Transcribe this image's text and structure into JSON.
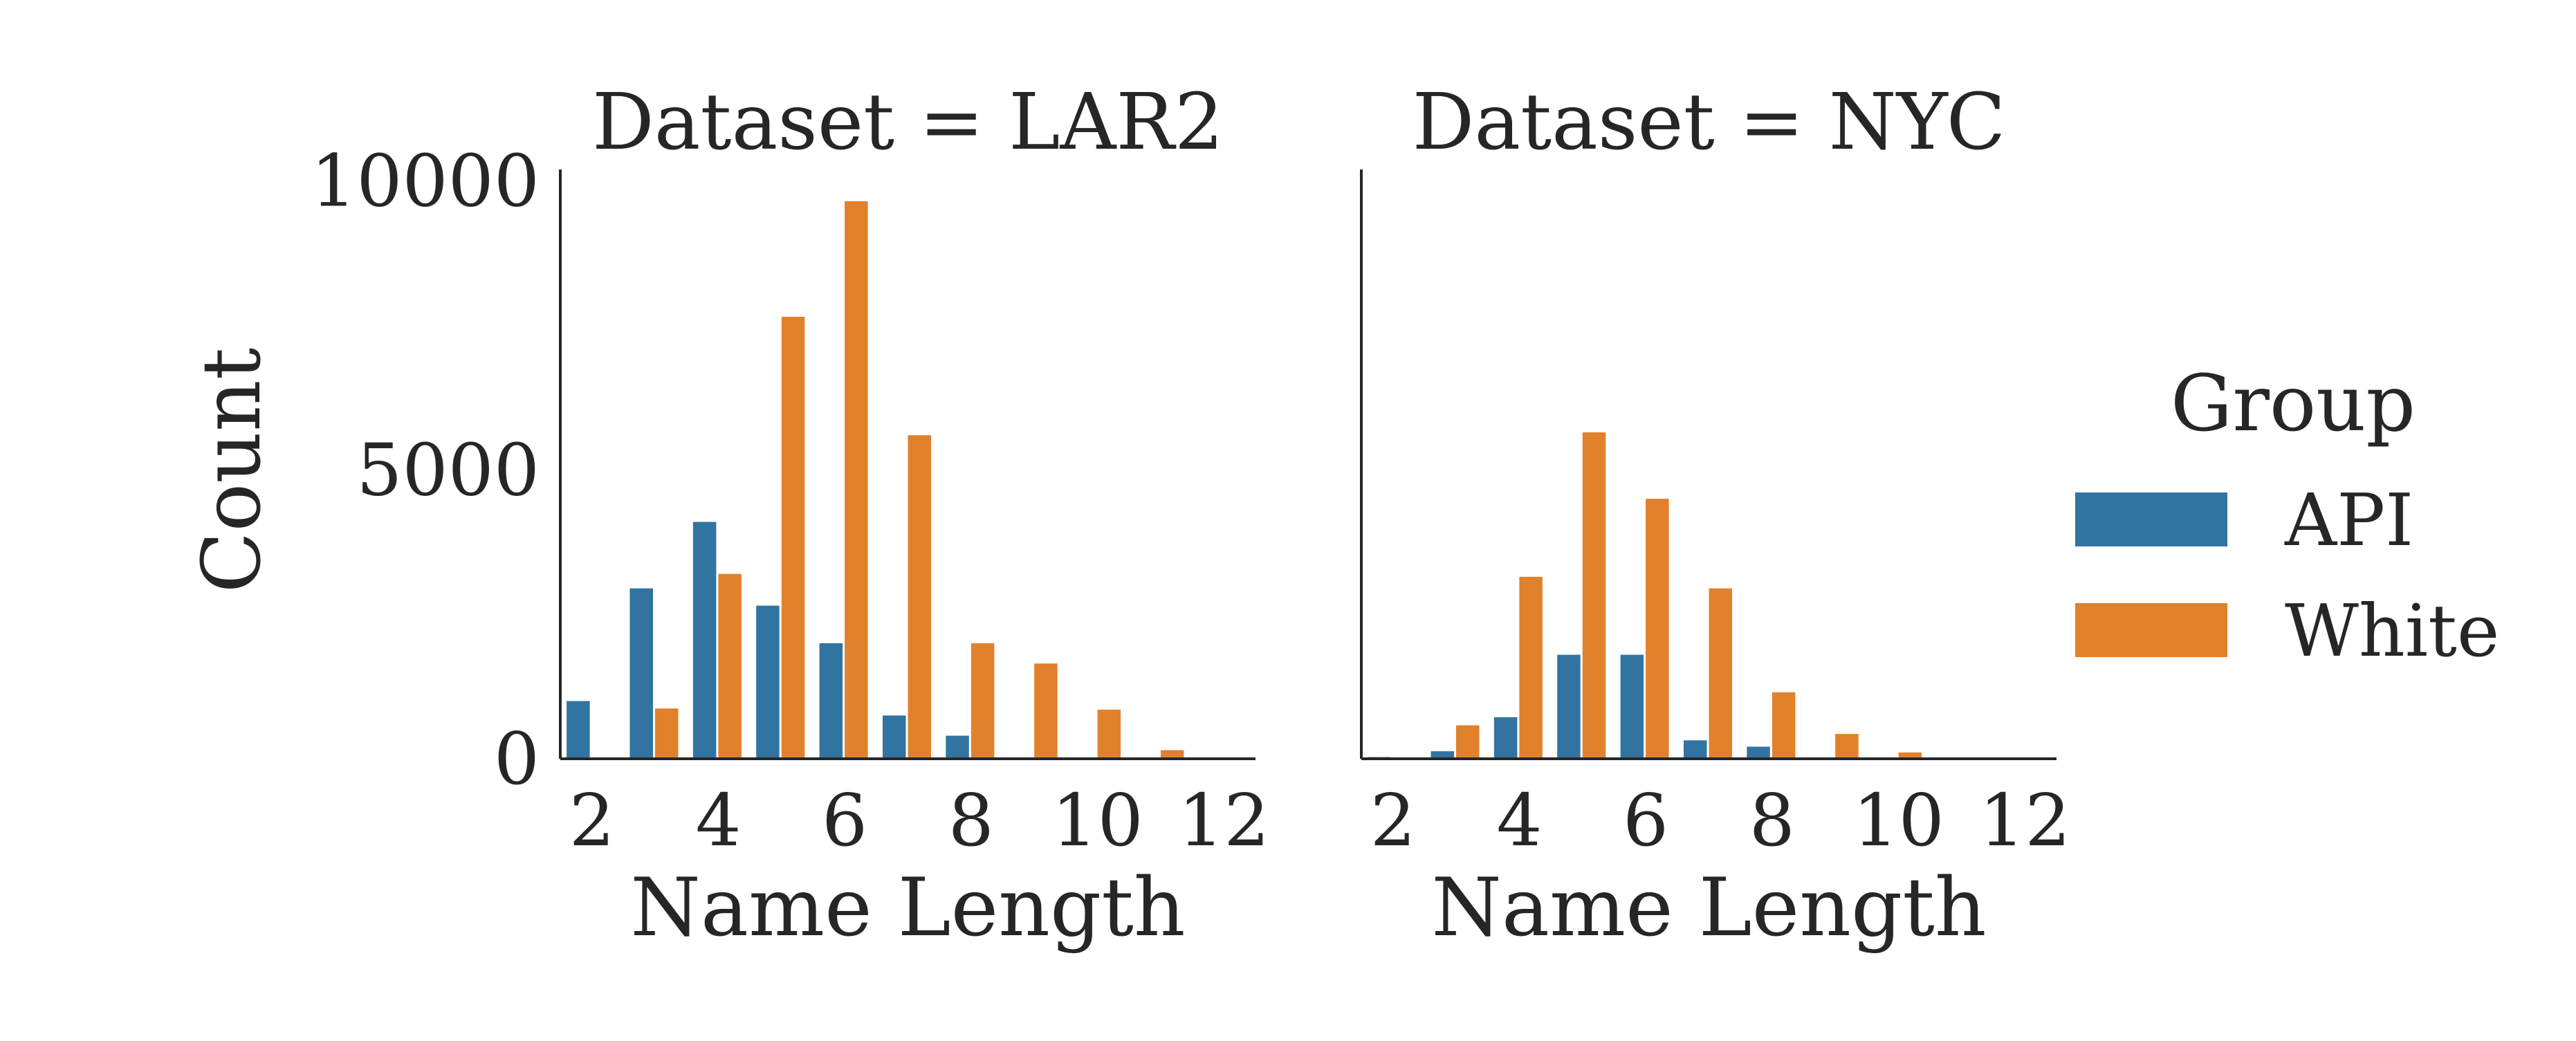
{
  "chart_data": [
    {
      "type": "bar",
      "title": "Dataset = LAR2",
      "xlabel": "Name Length",
      "ylabel": "Count",
      "x": [
        2,
        3,
        4,
        5,
        6,
        7,
        8,
        9,
        10,
        11
      ],
      "xlim": [
        1.5,
        12.5
      ],
      "ylim": [
        0,
        10200
      ],
      "xticks": [
        "2",
        "4",
        "6",
        "8",
        "10",
        "12"
      ],
      "yticks": [
        "0",
        "5000",
        "10000"
      ],
      "series": [
        {
          "name": "API",
          "values": [
            1000,
            2950,
            4100,
            2650,
            2000,
            750,
            400,
            20,
            0,
            0
          ]
        },
        {
          "name": "White",
          "values": [
            0,
            870,
            3200,
            7650,
            9650,
            5600,
            2000,
            1650,
            850,
            150
          ]
        }
      ]
    },
    {
      "type": "bar",
      "title": "Dataset = NYC",
      "xlabel": "Name Length",
      "ylabel": "",
      "x": [
        2,
        3,
        4,
        5,
        6,
        7,
        8,
        9,
        10,
        11
      ],
      "xlim": [
        1.5,
        12.5
      ],
      "ylim": [
        0,
        10200
      ],
      "xticks": [
        "2",
        "4",
        "6",
        "8",
        "10",
        "12"
      ],
      "yticks": [],
      "series": [
        {
          "name": "API",
          "values": [
            30,
            130,
            720,
            1800,
            1800,
            320,
            210,
            0,
            0,
            0
          ]
        },
        {
          "name": "White",
          "values": [
            0,
            580,
            3150,
            5650,
            4500,
            2950,
            1150,
            430,
            110,
            0
          ]
        }
      ]
    }
  ],
  "legend": {
    "title": "Group",
    "placement": "right",
    "items": [
      {
        "label": "API",
        "color": "#3274a1"
      },
      {
        "label": "White",
        "color": "#e1812c"
      }
    ]
  }
}
